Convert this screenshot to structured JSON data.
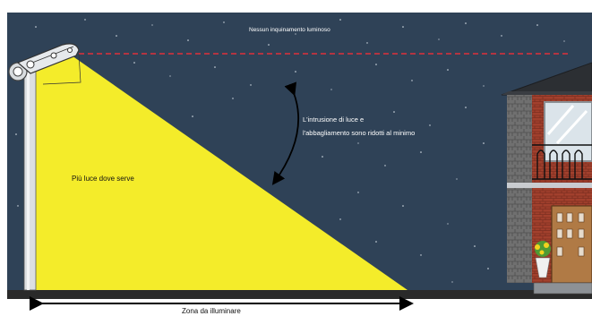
{
  "labels": {
    "no_light_pollution": "Nessun inquinamento luminoso",
    "intrusion_line1": "L'intrusione di luce e",
    "intrusion_line2": "l'abbagliamento sono ridotti al minimo",
    "more_light": "Più luce dove serve",
    "zone": "Zona da illuminare"
  },
  "colors": {
    "sky": "#2f4257",
    "light_beam": "#f4ec2a",
    "cutoff_line": "#e0303a",
    "ground": "#2a2a2a",
    "house_roof": "#2c2f33",
    "brick": "#a2402d",
    "stone": "#6d6d6d"
  },
  "icons": {
    "street_lamp": "street-lamp-icon",
    "house": "house-icon",
    "arrow_curved": "curved-double-arrow-icon",
    "arrow_horizontal": "horizontal-double-arrow-icon"
  }
}
